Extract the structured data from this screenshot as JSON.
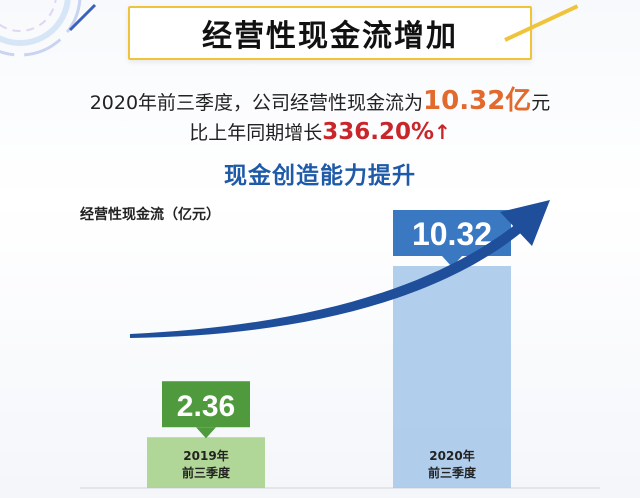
{
  "header": {
    "title": "经营性现金流增加"
  },
  "summary": {
    "line1_prefix": "2020年前三季度，公司经营性现金流为",
    "line1_value": "10.32亿",
    "line1_suffix": "元",
    "line2_prefix": "比上年同期增长",
    "line2_value": "336.20%",
    "line2_arrow": "↑",
    "line3": "现金创造能力提升"
  },
  "colors": {
    "bar_2019": "#a8d18d",
    "label_2019": "#4e9a3c",
    "bar_2020": "#a9c9ea",
    "label_2020": "#3a78c2",
    "trend_arrow": "#1f4f9a",
    "title_border": "#f0c43a"
  },
  "chart_data": {
    "type": "bar",
    "ylabel": "经营性现金流（亿元）",
    "categories": [
      {
        "line1": "2019年",
        "line2": "前三季度"
      },
      {
        "line1": "2020年",
        "line2": "前三季度"
      }
    ],
    "values": [
      2.36,
      10.32
    ],
    "value_labels": [
      "2.36",
      "10.32"
    ],
    "trend_arrow": true,
    "ylim": [
      0,
      11
    ]
  }
}
